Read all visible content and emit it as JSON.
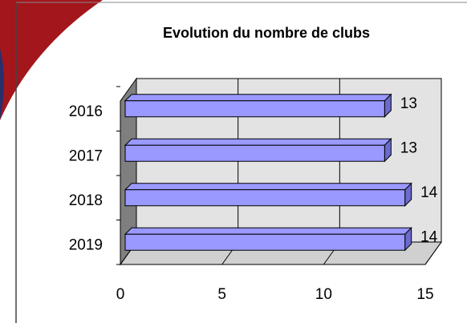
{
  "chart_data": {
    "type": "bar",
    "orientation": "horizontal",
    "title": "Evolution du nombre de clubs",
    "categories": [
      "2016",
      "2017",
      "2018",
      "2019"
    ],
    "values": [
      13,
      13,
      14,
      14
    ],
    "color": "#9999ff",
    "xlim": [
      0,
      15
    ],
    "xticks": [
      0,
      5,
      10,
      15
    ],
    "grid": true
  }
}
